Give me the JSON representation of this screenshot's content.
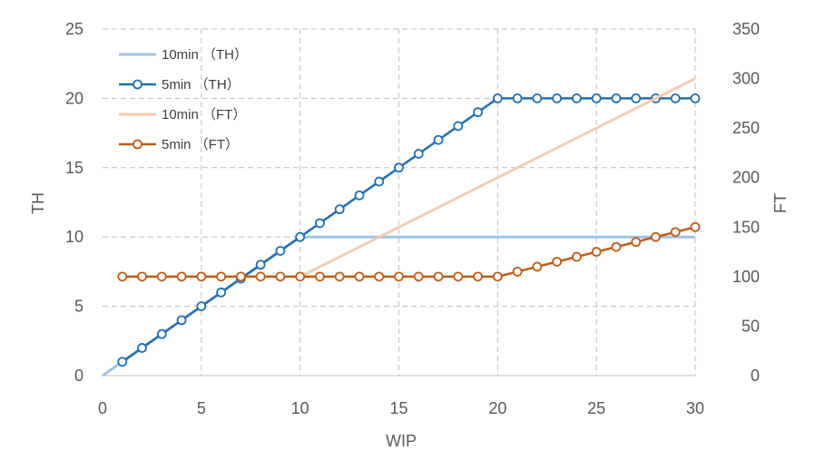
{
  "chart_data": {
    "type": "line",
    "xlabel": "WIP",
    "ylabel_left": "TH",
    "ylabel_right": "FT",
    "xlim": [
      0,
      30
    ],
    "ylim_left": [
      0,
      25
    ],
    "ylim_right": [
      0,
      350
    ],
    "x_ticks": [
      0,
      5,
      10,
      15,
      20,
      25,
      30
    ],
    "y_ticks_left": [
      0,
      5,
      10,
      15,
      20,
      25
    ],
    "y_ticks_right": [
      0,
      50,
      100,
      150,
      200,
      250,
      300,
      350
    ],
    "grid": true,
    "legend_position": "top-left",
    "series": [
      {
        "name": "10min （TH）",
        "axis": "left",
        "color": "#9DC3E6",
        "marker": "none",
        "x": [
          0,
          10,
          30
        ],
        "y": [
          0,
          10,
          10
        ]
      },
      {
        "name": "5min （TH）",
        "axis": "left",
        "color": "#1F6FB5",
        "marker": "circle",
        "x": [
          1,
          2,
          3,
          4,
          5,
          6,
          7,
          8,
          9,
          10,
          11,
          12,
          13,
          14,
          15,
          16,
          17,
          18,
          19,
          20,
          21,
          22,
          23,
          24,
          25,
          26,
          27,
          28,
          29,
          30
        ],
        "y": [
          1,
          2,
          3,
          4,
          5,
          6,
          7,
          8,
          9,
          10,
          11,
          12,
          13,
          14,
          15,
          16,
          17,
          18,
          19,
          20,
          20,
          20,
          20,
          20,
          20,
          20,
          20,
          20,
          20,
          20
        ]
      },
      {
        "name": "10min （FT）",
        "axis": "right",
        "color": "#F8CBAD",
        "marker": "none",
        "x": [
          10,
          30
        ],
        "y": [
          100,
          300
        ]
      },
      {
        "name": "5min （FT）",
        "axis": "right",
        "color": "#C55A11",
        "marker": "circle",
        "x": [
          1,
          2,
          3,
          4,
          5,
          6,
          7,
          8,
          9,
          10,
          11,
          12,
          13,
          14,
          15,
          16,
          17,
          18,
          19,
          20,
          21,
          22,
          23,
          24,
          25,
          26,
          27,
          28,
          29,
          30
        ],
        "y": [
          100,
          100,
          100,
          100,
          100,
          100,
          100,
          100,
          100,
          100,
          100,
          100,
          100,
          100,
          100,
          100,
          100,
          100,
          100,
          100,
          105,
          110,
          115,
          120,
          125,
          130,
          135,
          140,
          145,
          150
        ]
      }
    ]
  }
}
